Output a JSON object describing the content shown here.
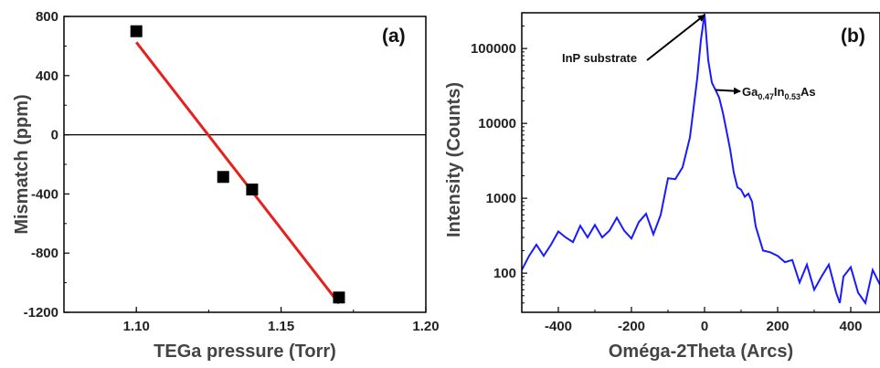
{
  "chart_data": [
    {
      "type": "scatter",
      "panel_label": "(a)",
      "xlabel": "TEGa pressure (Torr)",
      "ylabel": "Mismatch (ppm)",
      "xlim": [
        1.075,
        1.2
      ],
      "ylim": [
        -1200,
        800
      ],
      "xticks": [
        1.1,
        1.15,
        1.2
      ],
      "xtick_labels": [
        "1.10",
        "1.15",
        "1.20"
      ],
      "yticks": [
        800,
        400,
        0,
        -400,
        -800,
        -1200
      ],
      "ytick_labels": [
        "800",
        "400",
        "0",
        "-400",
        "-800",
        "-1200"
      ],
      "grid": false,
      "legend": "none",
      "points": [
        {
          "x": 1.1,
          "y": 700
        },
        {
          "x": 1.13,
          "y": -285
        },
        {
          "x": 1.14,
          "y": -370
        },
        {
          "x": 1.17,
          "y": -1100
        }
      ],
      "fit_line": {
        "x": [
          1.1,
          1.17
        ],
        "y": [
          625,
          -1140
        ],
        "color": "#e8201c"
      },
      "reference_line": {
        "y": 0,
        "color": "#000000"
      },
      "marker_color": "#000000"
    },
    {
      "type": "line",
      "panel_label": "(b)",
      "xlabel": "Oméga-2Theta (Arcs)",
      "ylabel": "Intensity (Counts)",
      "xlim": [
        -500,
        480
      ],
      "ylim": [
        30,
        300000
      ],
      "y_scale": "log",
      "xticks": [
        -400,
        -200,
        0,
        200,
        400
      ],
      "xtick_labels": [
        "-400",
        "-200",
        "0",
        "200",
        "400"
      ],
      "yticks": [
        100,
        1000,
        10000,
        100000
      ],
      "ytick_labels": [
        "100",
        "1000",
        "10000",
        "100000"
      ],
      "grid": false,
      "legend": "none",
      "line_color": "#1a1aff",
      "annotations": [
        {
          "text": "InP substrate",
          "arrow_to": {
            "x": 0,
            "y": 280000
          }
        },
        {
          "text_main": "Ga",
          "sub1": "0.47",
          "text_mid": "In",
          "sub2": "0.53",
          "text_end": "As",
          "arrow_to": {
            "x": 30,
            "y": 28000
          }
        }
      ],
      "series": [
        {
          "x": [
            -500,
            -480,
            -460,
            -440,
            -420,
            -400,
            -380,
            -360,
            -340,
            -320,
            -300,
            -280,
            -260,
            -240,
            -220,
            -200,
            -180,
            -160,
            -140,
            -120,
            -100,
            -80,
            -60,
            -40,
            -20,
            -10,
            0,
            10,
            20,
            30,
            40,
            50,
            60,
            70,
            80,
            90,
            100,
            110,
            120,
            130,
            140,
            160,
            180,
            200,
            220,
            240,
            260,
            280,
            300,
            320,
            340,
            360,
            370,
            380,
            400,
            420,
            440,
            460,
            480
          ],
          "y": [
            110,
            170,
            240,
            170,
            240,
            360,
            300,
            260,
            430,
            300,
            440,
            300,
            370,
            550,
            370,
            290,
            480,
            620,
            330,
            600,
            1850,
            1800,
            2600,
            6500,
            40000,
            130000,
            290000,
            70000,
            35000,
            28000,
            22000,
            14000,
            8000,
            4500,
            2200,
            1400,
            1300,
            1050,
            1150,
            900,
            420,
            200,
            190,
            170,
            140,
            150,
            75,
            130,
            60,
            90,
            130,
            55,
            40,
            90,
            120,
            55,
            40,
            110,
            70
          ]
        }
      ]
    }
  ]
}
